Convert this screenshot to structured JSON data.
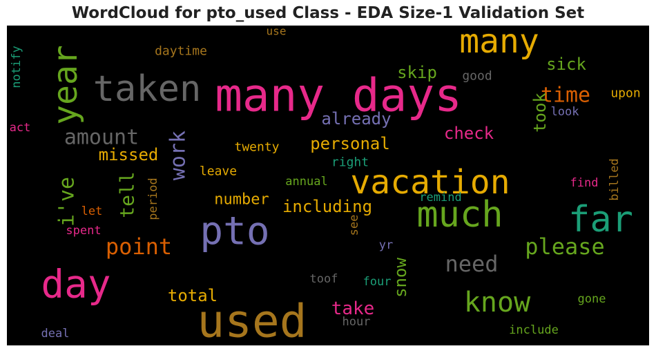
{
  "title": "WordCloud for pto_used Class - EDA Size-1 Validation Set",
  "colors": {
    "background": "#000000",
    "pink": "#e7298a",
    "gray": "#666666",
    "gold": "#e6ab02",
    "green": "#66a61e",
    "purple": "#7570b3",
    "teal": "#1b9e77",
    "orange": "#d95f02",
    "brown": "#a6761d"
  },
  "words": [
    {
      "text": "many days",
      "color": "#e7298a"
    },
    {
      "text": "used",
      "color": "#a6761d"
    },
    {
      "text": "taken",
      "color": "#666666"
    },
    {
      "text": "many",
      "color": "#e6ab02"
    },
    {
      "text": "year",
      "color": "#66a61e"
    },
    {
      "text": "vacation",
      "color": "#e6ab02"
    },
    {
      "text": "pto",
      "color": "#7570b3"
    },
    {
      "text": "much",
      "color": "#66a61e"
    },
    {
      "text": "far",
      "color": "#1b9e77"
    },
    {
      "text": "day",
      "color": "#e7298a"
    },
    {
      "text": "know",
      "color": "#66a61e"
    },
    {
      "text": "please",
      "color": "#66a61e"
    },
    {
      "text": "need",
      "color": "#666666"
    },
    {
      "text": "point",
      "color": "#d95f02"
    },
    {
      "text": "time",
      "color": "#d95f02"
    },
    {
      "text": "amount",
      "color": "#666666"
    },
    {
      "text": "work",
      "color": "#7570b3"
    },
    {
      "text": "i've",
      "color": "#66a61e"
    },
    {
      "text": "tell",
      "color": "#66a61e"
    },
    {
      "text": "sick",
      "color": "#66a61e"
    },
    {
      "text": "skip",
      "color": "#66a61e"
    },
    {
      "text": "already",
      "color": "#7570b3"
    },
    {
      "text": "check",
      "color": "#e7298a"
    },
    {
      "text": "took",
      "color": "#66a61e"
    },
    {
      "text": "personal",
      "color": "#e6ab02"
    },
    {
      "text": "missed",
      "color": "#e6ab02"
    },
    {
      "text": "including",
      "color": "#e6ab02"
    },
    {
      "text": "number",
      "color": "#e6ab02"
    },
    {
      "text": "take",
      "color": "#e7298a"
    },
    {
      "text": "total",
      "color": "#e6ab02"
    },
    {
      "text": "snow",
      "color": "#66a61e"
    },
    {
      "text": "daytime",
      "color": "#a6761d"
    },
    {
      "text": "use",
      "color": "#a6761d"
    },
    {
      "text": "good",
      "color": "#666666"
    },
    {
      "text": "upon",
      "color": "#e6ab02"
    },
    {
      "text": "look",
      "color": "#7570b3"
    },
    {
      "text": "notify",
      "color": "#1b9e77"
    },
    {
      "text": "act",
      "color": "#e7298a"
    },
    {
      "text": "twenty",
      "color": "#e6ab02"
    },
    {
      "text": "right",
      "color": "#1b9e77"
    },
    {
      "text": "leave",
      "color": "#e6ab02"
    },
    {
      "text": "annual",
      "color": "#66a61e"
    },
    {
      "text": "period",
      "color": "#a6761d"
    },
    {
      "text": "let",
      "color": "#d95f02"
    },
    {
      "text": "spent",
      "color": "#e7298a"
    },
    {
      "text": "remind",
      "color": "#1b9e77"
    },
    {
      "text": "see",
      "color": "#a6761d"
    },
    {
      "text": "find",
      "color": "#e7298a"
    },
    {
      "text": "billed",
      "color": "#a6761d"
    },
    {
      "text": "yr",
      "color": "#7570b3"
    },
    {
      "text": "toof",
      "color": "#666666"
    },
    {
      "text": "four",
      "color": "#1b9e77"
    },
    {
      "text": "gone",
      "color": "#66a61e"
    },
    {
      "text": "hour",
      "color": "#666666"
    },
    {
      "text": "include",
      "color": "#66a61e"
    },
    {
      "text": "deal",
      "color": "#7570b3"
    }
  ]
}
